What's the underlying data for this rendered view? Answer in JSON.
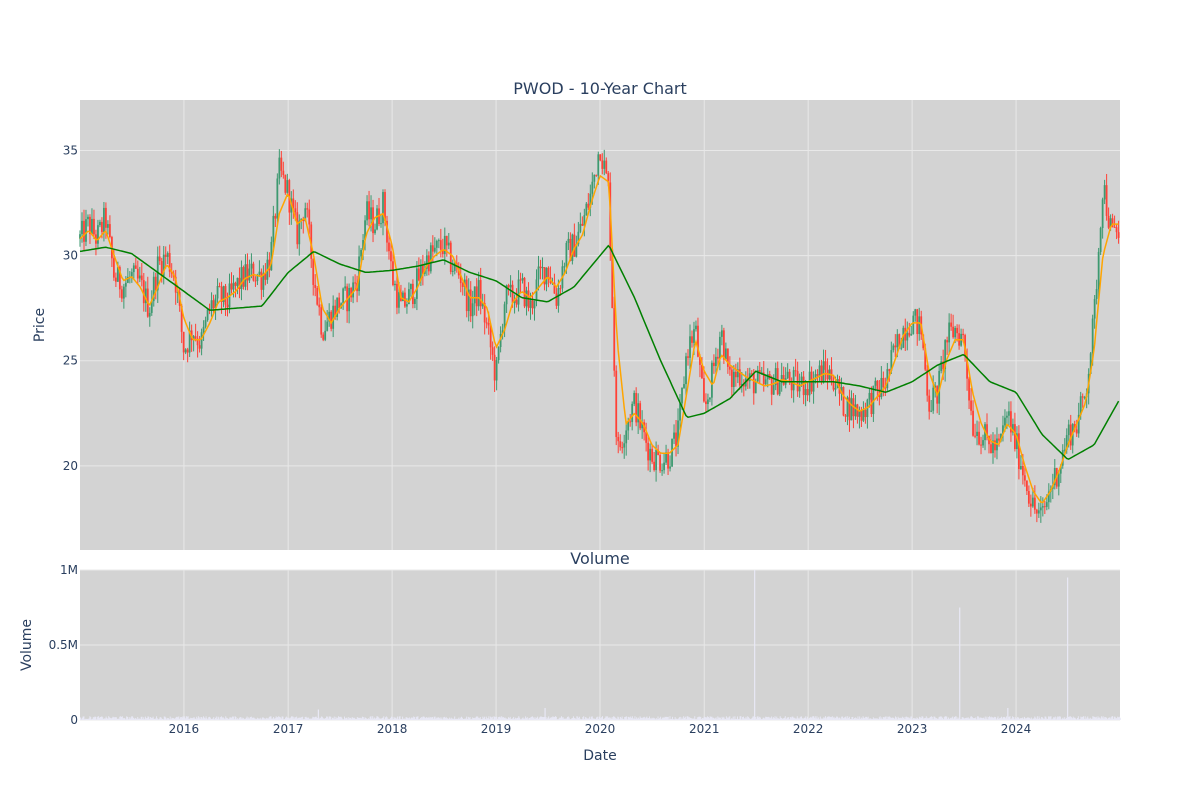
{
  "chart_data": [
    {
      "type": "candlestick",
      "title": "PWOD - 10-Year Chart",
      "ylabel": "Price",
      "xlabel": "",
      "x_range": [
        "2015-01-01",
        "2024-12-31"
      ],
      "ylim": [
        16.0,
        37.4
      ],
      "y_ticks": [
        20,
        25,
        30,
        35
      ],
      "y_tick_labels": [
        "20",
        "25",
        "30",
        "35"
      ],
      "grid": true,
      "colors": {
        "background": "#d3d3d3",
        "grid": "#e8e8e8",
        "increasing": "#3d9970",
        "decreasing": "#ff4136",
        "ma_short": "#ffa500",
        "ma_long": "#008000"
      },
      "price_path": [
        [
          "2015-01-01",
          30.8
        ],
        [
          "2015-02-01",
          31.5
        ],
        [
          "2015-03-01",
          30.8
        ],
        [
          "2015-04-01",
          31.8
        ],
        [
          "2015-05-01",
          29.0
        ],
        [
          "2015-06-01",
          28.6
        ],
        [
          "2015-07-01",
          29.0
        ],
        [
          "2015-08-01",
          28.6
        ],
        [
          "2015-09-01",
          27.5
        ],
        [
          "2015-10-01",
          29.5
        ],
        [
          "2015-11-01",
          30.0
        ],
        [
          "2015-12-01",
          29.0
        ],
        [
          "2016-01-01",
          25.5
        ],
        [
          "2016-02-01",
          26.5
        ],
        [
          "2016-03-01",
          25.8
        ],
        [
          "2016-04-01",
          27.5
        ],
        [
          "2016-05-01",
          28.0
        ],
        [
          "2016-06-01",
          27.8
        ],
        [
          "2016-07-01",
          28.5
        ],
        [
          "2016-08-01",
          29.0
        ],
        [
          "2016-09-01",
          29.2
        ],
        [
          "2016-10-01",
          29.0
        ],
        [
          "2016-11-01",
          30.0
        ],
        [
          "2016-12-01",
          34.0
        ],
        [
          "2017-01-01",
          33.0
        ],
        [
          "2017-02-01",
          31.0
        ],
        [
          "2017-03-01",
          32.5
        ],
        [
          "2017-04-01",
          29.0
        ],
        [
          "2017-05-01",
          26.5
        ],
        [
          "2017-06-01",
          27.2
        ],
        [
          "2017-07-01",
          27.8
        ],
        [
          "2017-08-01",
          28.0
        ],
        [
          "2017-09-01",
          29.0
        ],
        [
          "2017-10-01",
          32.0
        ],
        [
          "2017-11-01",
          31.5
        ],
        [
          "2017-12-01",
          32.5
        ],
        [
          "2018-01-01",
          29.0
        ],
        [
          "2018-02-01",
          27.5
        ],
        [
          "2018-03-01",
          28.0
        ],
        [
          "2018-04-01",
          28.8
        ],
        [
          "2018-05-01",
          29.8
        ],
        [
          "2018-06-01",
          30.2
        ],
        [
          "2018-07-01",
          30.5
        ],
        [
          "2018-08-01",
          29.5
        ],
        [
          "2018-09-01",
          29.0
        ],
        [
          "2018-10-01",
          27.5
        ],
        [
          "2018-11-01",
          28.3
        ],
        [
          "2018-12-01",
          26.5
        ],
        [
          "2019-01-01",
          24.2
        ],
        [
          "2019-02-01",
          28.0
        ],
        [
          "2019-03-01",
          28.0
        ],
        [
          "2019-04-01",
          28.5
        ],
        [
          "2019-05-01",
          27.5
        ],
        [
          "2019-06-01",
          29.0
        ],
        [
          "2019-07-01",
          29.5
        ],
        [
          "2019-08-01",
          28.0
        ],
        [
          "2019-09-01",
          30.0
        ],
        [
          "2019-10-01",
          30.5
        ],
        [
          "2019-11-01",
          31.5
        ],
        [
          "2019-12-01",
          33.0
        ],
        [
          "2020-01-01",
          35.3
        ],
        [
          "2020-02-01",
          33.0
        ],
        [
          "2020-03-01",
          20.5
        ],
        [
          "2020-04-01",
          22.0
        ],
        [
          "2020-05-01",
          23.0
        ],
        [
          "2020-06-01",
          21.5
        ],
        [
          "2020-07-01",
          20.5
        ],
        [
          "2020-08-01",
          20.3
        ],
        [
          "2020-09-01",
          20.5
        ],
        [
          "2020-10-01",
          21.5
        ],
        [
          "2020-11-01",
          25.5
        ],
        [
          "2020-12-01",
          26.5
        ],
        [
          "2021-01-01",
          22.5
        ],
        [
          "2021-02-01",
          24.5
        ],
        [
          "2021-03-01",
          26.5
        ],
        [
          "2021-04-01",
          24.0
        ],
        [
          "2021-05-01",
          24.5
        ],
        [
          "2021-06-01",
          24.0
        ],
        [
          "2021-07-01",
          24.0
        ],
        [
          "2021-08-01",
          23.8
        ],
        [
          "2021-09-01",
          24.0
        ],
        [
          "2021-10-01",
          24.2
        ],
        [
          "2021-11-01",
          24.0
        ],
        [
          "2021-12-01",
          23.8
        ],
        [
          "2022-01-01",
          24.0
        ],
        [
          "2022-02-01",
          24.3
        ],
        [
          "2022-03-01",
          24.5
        ],
        [
          "2022-04-01",
          24.2
        ],
        [
          "2022-05-01",
          23.0
        ],
        [
          "2022-06-01",
          22.8
        ],
        [
          "2022-07-01",
          22.5
        ],
        [
          "2022-08-01",
          23.0
        ],
        [
          "2022-09-01",
          23.5
        ],
        [
          "2022-10-01",
          24.0
        ],
        [
          "2022-11-01",
          25.5
        ],
        [
          "2022-12-01",
          26.5
        ],
        [
          "2023-01-01",
          27.0
        ],
        [
          "2023-02-01",
          26.5
        ],
        [
          "2023-03-01",
          23.0
        ],
        [
          "2023-04-01",
          23.5
        ],
        [
          "2023-05-01",
          26.0
        ],
        [
          "2023-06-01",
          26.5
        ],
        [
          "2023-07-01",
          26.0
        ],
        [
          "2023-08-01",
          22.0
        ],
        [
          "2023-09-01",
          21.5
        ],
        [
          "2023-10-01",
          21.0
        ],
        [
          "2023-11-01",
          20.8
        ],
        [
          "2023-12-01",
          22.5
        ],
        [
          "2024-01-01",
          21.0
        ],
        [
          "2024-02-01",
          19.5
        ],
        [
          "2024-03-01",
          18.0
        ],
        [
          "2024-04-01",
          17.5
        ],
        [
          "2024-05-01",
          19.0
        ],
        [
          "2024-06-01",
          20.0
        ],
        [
          "2024-07-01",
          21.5
        ],
        [
          "2024-08-01",
          22.0
        ],
        [
          "2024-09-01",
          23.5
        ],
        [
          "2024-10-01",
          27.0
        ],
        [
          "2024-11-01",
          33.5
        ],
        [
          "2024-12-01",
          31.0
        ]
      ],
      "ma_short_path": [
        [
          "2015-01-01",
          30.8
        ],
        [
          "2015-02-01",
          31.2
        ],
        [
          "2015-03-01",
          30.7
        ],
        [
          "2015-04-01",
          31.2
        ],
        [
          "2015-05-01",
          30.0
        ],
        [
          "2015-06-01",
          28.8
        ],
        [
          "2015-07-01",
          29.0
        ],
        [
          "2015-08-01",
          28.5
        ],
        [
          "2015-09-01",
          27.6
        ],
        [
          "2015-10-01",
          28.5
        ],
        [
          "2015-11-01",
          29.6
        ],
        [
          "2015-12-01",
          29.0
        ],
        [
          "2016-01-01",
          27.0
        ],
        [
          "2016-02-01",
          26.0
        ],
        [
          "2016-03-01",
          26.0
        ],
        [
          "2016-04-01",
          26.8
        ],
        [
          "2016-05-01",
          27.8
        ],
        [
          "2016-06-01",
          28.0
        ],
        [
          "2016-07-01",
          28.3
        ],
        [
          "2016-08-01",
          28.9
        ],
        [
          "2016-09-01",
          29.1
        ],
        [
          "2016-10-01",
          29.0
        ],
        [
          "2016-11-01",
          29.5
        ],
        [
          "2016-12-01",
          32.0
        ],
        [
          "2017-01-01",
          33.0
        ],
        [
          "2017-02-01",
          31.5
        ],
        [
          "2017-03-01",
          31.8
        ],
        [
          "2017-04-01",
          30.0
        ],
        [
          "2017-05-01",
          27.5
        ],
        [
          "2017-06-01",
          26.8
        ],
        [
          "2017-07-01",
          27.5
        ],
        [
          "2017-08-01",
          28.0
        ],
        [
          "2017-09-01",
          28.5
        ],
        [
          "2017-10-01",
          31.0
        ],
        [
          "2017-11-01",
          31.8
        ],
        [
          "2017-12-01",
          32.0
        ],
        [
          "2018-01-01",
          30.5
        ],
        [
          "2018-02-01",
          28.0
        ],
        [
          "2018-03-01",
          27.8
        ],
        [
          "2018-04-01",
          28.5
        ],
        [
          "2018-05-01",
          29.5
        ],
        [
          "2018-06-01",
          30.0
        ],
        [
          "2018-07-01",
          30.3
        ],
        [
          "2018-08-01",
          30.0
        ],
        [
          "2018-09-01",
          29.0
        ],
        [
          "2018-10-01",
          28.0
        ],
        [
          "2018-11-01",
          28.0
        ],
        [
          "2018-12-01",
          27.5
        ],
        [
          "2019-01-01",
          25.6
        ],
        [
          "2019-02-01",
          26.5
        ],
        [
          "2019-03-01",
          27.8
        ],
        [
          "2019-04-01",
          28.3
        ],
        [
          "2019-05-01",
          28.0
        ],
        [
          "2019-06-01",
          28.5
        ],
        [
          "2019-07-01",
          29.0
        ],
        [
          "2019-08-01",
          28.5
        ],
        [
          "2019-09-01",
          29.2
        ],
        [
          "2019-10-01",
          30.3
        ],
        [
          "2019-11-01",
          31.0
        ],
        [
          "2019-12-01",
          32.5
        ],
        [
          "2020-01-01",
          33.8
        ],
        [
          "2020-02-01",
          33.5
        ],
        [
          "2020-03-01",
          26.0
        ],
        [
          "2020-04-01",
          22.0
        ],
        [
          "2020-05-01",
          22.5
        ],
        [
          "2020-06-01",
          22.0
        ],
        [
          "2020-07-01",
          21.0
        ],
        [
          "2020-08-01",
          20.6
        ],
        [
          "2020-09-01",
          20.6
        ],
        [
          "2020-10-01",
          21.0
        ],
        [
          "2020-11-01",
          23.5
        ],
        [
          "2020-12-01",
          26.0
        ],
        [
          "2021-01-01",
          24.5
        ],
        [
          "2021-02-01",
          23.8
        ],
        [
          "2021-03-01",
          25.3
        ],
        [
          "2021-04-01",
          24.8
        ],
        [
          "2021-05-01",
          24.5
        ],
        [
          "2021-06-01",
          24.2
        ],
        [
          "2021-07-01",
          24.0
        ],
        [
          "2021-08-01",
          23.8
        ],
        [
          "2021-09-01",
          23.9
        ],
        [
          "2021-10-01",
          24.1
        ],
        [
          "2021-11-01",
          24.0
        ],
        [
          "2021-12-01",
          23.8
        ],
        [
          "2022-01-01",
          24.0
        ],
        [
          "2022-02-01",
          24.2
        ],
        [
          "2022-03-01",
          24.4
        ],
        [
          "2022-04-01",
          24.3
        ],
        [
          "2022-05-01",
          23.4
        ],
        [
          "2022-06-01",
          22.9
        ],
        [
          "2022-07-01",
          22.6
        ],
        [
          "2022-08-01",
          22.8
        ],
        [
          "2022-09-01",
          23.3
        ],
        [
          "2022-10-01",
          23.8
        ],
        [
          "2022-11-01",
          25.0
        ],
        [
          "2022-12-01",
          26.2
        ],
        [
          "2023-01-01",
          26.8
        ],
        [
          "2023-02-01",
          26.8
        ],
        [
          "2023-03-01",
          24.5
        ],
        [
          "2023-04-01",
          23.3
        ],
        [
          "2023-05-01",
          25.0
        ],
        [
          "2023-06-01",
          26.0
        ],
        [
          "2023-07-01",
          26.0
        ],
        [
          "2023-08-01",
          23.5
        ],
        [
          "2023-09-01",
          22.0
        ],
        [
          "2023-10-01",
          21.2
        ],
        [
          "2023-11-01",
          21.0
        ],
        [
          "2023-12-01",
          22.0
        ],
        [
          "2024-01-01",
          21.5
        ],
        [
          "2024-02-01",
          20.0
        ],
        [
          "2024-03-01",
          18.8
        ],
        [
          "2024-04-01",
          18.2
        ],
        [
          "2024-05-01",
          18.8
        ],
        [
          "2024-06-01",
          19.8
        ],
        [
          "2024-07-01",
          21.0
        ],
        [
          "2024-08-01",
          22.0
        ],
        [
          "2024-09-01",
          23.0
        ],
        [
          "2024-10-01",
          25.5
        ],
        [
          "2024-11-01",
          30.0
        ],
        [
          "2024-12-01",
          31.5
        ]
      ],
      "ma_long_path": [
        [
          "2015-01-01",
          30.2
        ],
        [
          "2015-04-01",
          30.4
        ],
        [
          "2015-07-01",
          30.1
        ],
        [
          "2015-10-01",
          29.2
        ],
        [
          "2016-01-01",
          28.3
        ],
        [
          "2016-04-01",
          27.4
        ],
        [
          "2016-07-01",
          27.5
        ],
        [
          "2016-10-01",
          27.6
        ],
        [
          "2017-01-01",
          29.2
        ],
        [
          "2017-04-01",
          30.2
        ],
        [
          "2017-07-01",
          29.6
        ],
        [
          "2017-10-01",
          29.2
        ],
        [
          "2018-01-01",
          29.3
        ],
        [
          "2018-04-01",
          29.5
        ],
        [
          "2018-07-01",
          29.8
        ],
        [
          "2018-10-01",
          29.2
        ],
        [
          "2019-01-01",
          28.8
        ],
        [
          "2019-04-01",
          28.0
        ],
        [
          "2019-07-01",
          27.8
        ],
        [
          "2019-10-01",
          28.5
        ],
        [
          "2020-01-01",
          30.0
        ],
        [
          "2020-02-01",
          30.5
        ],
        [
          "2020-05-01",
          28.0
        ],
        [
          "2020-08-01",
          25.0
        ],
        [
          "2020-11-01",
          22.3
        ],
        [
          "2021-01-01",
          22.5
        ],
        [
          "2021-04-01",
          23.2
        ],
        [
          "2021-07-01",
          24.5
        ],
        [
          "2021-10-01",
          24.0
        ],
        [
          "2022-01-01",
          24.0
        ],
        [
          "2022-04-01",
          24.0
        ],
        [
          "2022-07-01",
          23.8
        ],
        [
          "2022-10-01",
          23.5
        ],
        [
          "2023-01-01",
          24.0
        ],
        [
          "2023-04-01",
          24.8
        ],
        [
          "2023-07-01",
          25.3
        ],
        [
          "2023-10-01",
          24.0
        ],
        [
          "2024-01-01",
          23.5
        ],
        [
          "2024-04-01",
          21.5
        ],
        [
          "2024-07-01",
          20.3
        ],
        [
          "2024-10-01",
          21.0
        ],
        [
          "2024-12-31",
          23.2
        ]
      ]
    },
    {
      "type": "bar",
      "title": "Volume",
      "ylabel": "Volume",
      "xlabel": "Date",
      "x_range": [
        "2015-01-01",
        "2024-12-31"
      ],
      "ylim": [
        0,
        1000000
      ],
      "y_ticks": [
        0,
        500000,
        1000000
      ],
      "y_tick_labels": [
        "0",
        "0.5M",
        "1M"
      ],
      "x_ticks": [
        "2016-01-01",
        "2017-01-01",
        "2018-01-01",
        "2019-01-01",
        "2020-01-01",
        "2021-01-01",
        "2022-01-01",
        "2023-01-01",
        "2024-01-01"
      ],
      "x_tick_labels": [
        "2016",
        "2017",
        "2018",
        "2019",
        "2020",
        "2021",
        "2022",
        "2023",
        "2024"
      ],
      "grid": true,
      "colors": {
        "background": "#d3d3d3",
        "bar": "#e8e8f5"
      },
      "baseline_volume": 15000,
      "spikes": [
        [
          "2017-04-15",
          70000
        ],
        [
          "2019-06-20",
          80000
        ],
        [
          "2021-06-25",
          1000000
        ],
        [
          "2023-06-15",
          750000
        ],
        [
          "2023-12-01",
          80000
        ],
        [
          "2024-06-28",
          950000
        ]
      ]
    }
  ]
}
